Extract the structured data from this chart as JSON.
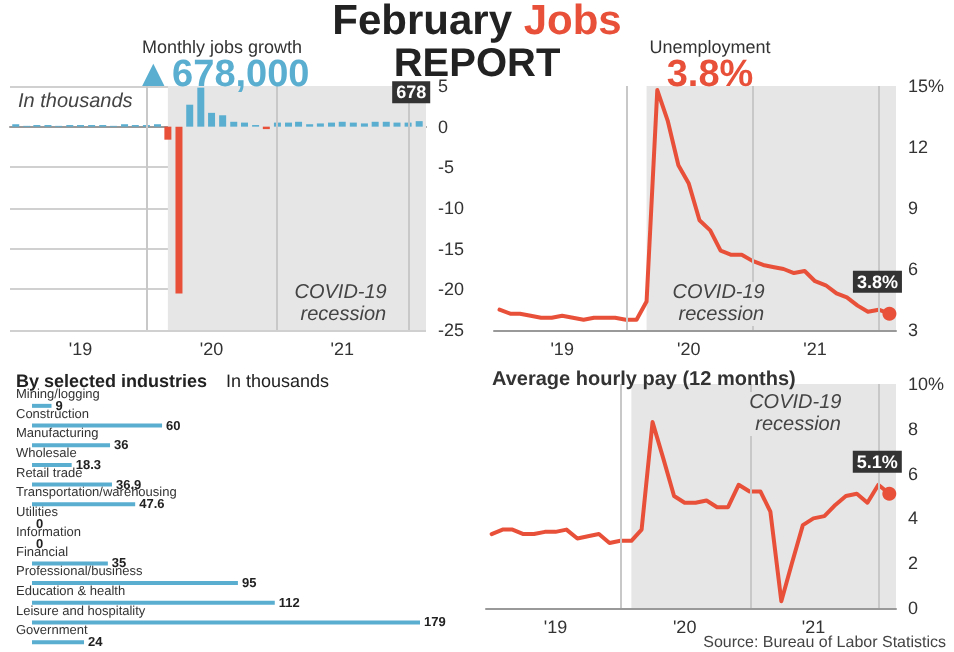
{
  "chart_data": [
    {
      "type": "other",
      "title": "February Jobs",
      "subtitle": "REPORT"
    },
    {
      "type": "bar",
      "title": "Monthly jobs growth",
      "subtitle": "▲678,000",
      "ylabel": "In thousands",
      "x": [
        "2019-01",
        "2019-02",
        "2019-03",
        "2019-04",
        "2019-05",
        "2019-06",
        "2019-07",
        "2019-08",
        "2019-09",
        "2019-10",
        "2019-11",
        "2019-12",
        "2020-01",
        "2020-02",
        "2020-03",
        "2020-04",
        "2020-05",
        "2020-06",
        "2020-07",
        "2020-08",
        "2020-09",
        "2020-10",
        "2020-11",
        "2020-12",
        "2021-01",
        "2021-02",
        "2021-03",
        "2021-04",
        "2021-05",
        "2021-06",
        "2021-07",
        "2021-08",
        "2021-09",
        "2021-10",
        "2021-11",
        "2021-12",
        "2022-01",
        "2022-02"
      ],
      "values": [
        0.3,
        0.1,
        0.2,
        0.2,
        0.1,
        0.2,
        0.2,
        0.2,
        0.2,
        0.1,
        0.3,
        0.2,
        0.2,
        0.3,
        -1.6,
        -20.5,
        2.7,
        4.8,
        1.7,
        1.4,
        0.6,
        0.5,
        0.2,
        -0.3,
        0.5,
        0.5,
        0.6,
        0.3,
        0.4,
        0.5,
        0.6,
        0.5,
        0.4,
        0.6,
        0.6,
        0.5,
        0.5,
        0.678
      ],
      "colors": [
        "#5aaed0",
        "#5aaed0",
        "#5aaed0",
        "#5aaed0",
        "#5aaed0",
        "#5aaed0",
        "#5aaed0",
        "#5aaed0",
        "#5aaed0",
        "#5aaed0",
        "#5aaed0",
        "#5aaed0",
        "#5aaed0",
        "#5aaed0",
        "#e8503a",
        "#e8503a",
        "#5aaed0",
        "#5aaed0",
        "#5aaed0",
        "#5aaed0",
        "#5aaed0",
        "#5aaed0",
        "#5aaed0",
        "#e8503a",
        "#5aaed0",
        "#5aaed0",
        "#5aaed0",
        "#5aaed0",
        "#5aaed0",
        "#5aaed0",
        "#5aaed0",
        "#5aaed0",
        "#5aaed0",
        "#5aaed0",
        "#5aaed0",
        "#5aaed0",
        "#5aaed0",
        "#5aaed0"
      ],
      "annotations": [
        {
          "text": "678",
          "x": "2022-02",
          "y": 0.678
        }
      ],
      "xlim": [
        "2018-12-16",
        "2022-02-20"
      ],
      "xticks": [
        {
          "value": "2019-07-01",
          "label": "'19"
        },
        {
          "value": "2020-01-01",
          "label": null
        },
        {
          "value": "2020-07-01",
          "label": "'20"
        },
        {
          "value": "2021-01-01",
          "label": null
        },
        {
          "value": "2021-07-01",
          "label": "'21"
        },
        {
          "value": "2022-01-01",
          "label": null
        }
      ],
      "ylim": [
        -25,
        5
      ],
      "yticks": [
        -25,
        -20,
        -15,
        -10,
        -5,
        0,
        5
      ],
      "grid": true,
      "bands": [
        {
          "axis": "x",
          "from": "2020-03",
          "to": "2022-02-20",
          "label": "COVID-19 recession",
          "color": "#e6e6e6"
        }
      ]
    },
    {
      "type": "line",
      "title": "Unemployment",
      "subtitle": "3.8%",
      "color": "#e8503a",
      "x": [
        "2019-01",
        "2019-02",
        "2019-03",
        "2019-04",
        "2019-05",
        "2019-06",
        "2019-07",
        "2019-08",
        "2019-09",
        "2019-10",
        "2019-11",
        "2019-12",
        "2020-01",
        "2020-02",
        "2020-03",
        "2020-04",
        "2020-05",
        "2020-06",
        "2020-07",
        "2020-08",
        "2020-09",
        "2020-10",
        "2020-11",
        "2020-12",
        "2021-01",
        "2021-02",
        "2021-03",
        "2021-04",
        "2021-05",
        "2021-06",
        "2021-07",
        "2021-08",
        "2021-09",
        "2021-10",
        "2021-11",
        "2021-12",
        "2022-01",
        "2022-02"
      ],
      "values": [
        4.0,
        3.8,
        3.8,
        3.7,
        3.6,
        3.6,
        3.7,
        3.6,
        3.5,
        3.6,
        3.6,
        3.6,
        3.5,
        3.5,
        4.4,
        14.8,
        13.3,
        11.1,
        10.2,
        8.4,
        7.9,
        6.9,
        6.7,
        6.7,
        6.4,
        6.2,
        6.1,
        6.0,
        5.8,
        5.9,
        5.4,
        5.2,
        4.8,
        4.6,
        4.2,
        3.9,
        4.0,
        3.8
      ],
      "xlim": [
        "2018-12-16",
        "2022-02-20"
      ],
      "xticks": [
        {
          "value": "2019-07-01",
          "label": "'19"
        },
        {
          "value": "2020-01-01",
          "label": null
        },
        {
          "value": "2020-07-01",
          "label": "'20"
        },
        {
          "value": "2021-01-01",
          "label": null
        },
        {
          "value": "2021-07-01",
          "label": "'21"
        },
        {
          "value": "2022-01-01",
          "label": null
        }
      ],
      "ylim": [
        3,
        15
      ],
      "yticks": [
        3,
        6,
        9,
        12,
        {
          "value": 15,
          "label": "15%"
        }
      ],
      "grid": "x",
      "bands": [
        {
          "axis": "x",
          "from": "2020-03",
          "to": "2022-02-20",
          "label": "COVID-19 recession",
          "color": "#e6e6e6"
        }
      ],
      "annotations": [
        {
          "text": "3.8%",
          "x": "2022-02",
          "y": 3.8
        }
      ]
    },
    {
      "type": "bar",
      "orientation": "horizontal",
      "title": "By selected industries",
      "subtitle": "In thousands",
      "color": "#5aaed0",
      "categories": [
        "Mining/logging",
        "Construction",
        "Manufacturing",
        "Wholesale",
        "Retail trade",
        "Transportation/warehousing",
        "Utilities",
        "Information",
        "Financial",
        "Professional/business",
        "Education & health",
        "Leisure and hospitality",
        "Government"
      ],
      "values": [
        9,
        60,
        36,
        18.3,
        36.9,
        47.6,
        0,
        0,
        35,
        95,
        112,
        179,
        24
      ],
      "data_labels": true,
      "tick_labels": "y"
    },
    {
      "type": "line",
      "title": "Average hourly pay (12 months)",
      "color": "#e8503a",
      "x": [
        "2019-01",
        "2019-02",
        "2019-03",
        "2019-04",
        "2019-05",
        "2019-06",
        "2019-07",
        "2019-08",
        "2019-09",
        "2019-10",
        "2019-11",
        "2019-12",
        "2020-01",
        "2020-02",
        "2020-03",
        "2020-04",
        "2020-05",
        "2020-06",
        "2020-07",
        "2020-08",
        "2020-09",
        "2020-10",
        "2020-11",
        "2020-12",
        "2021-01",
        "2021-02",
        "2021-03",
        "2021-04",
        "2021-05",
        "2021-06",
        "2021-07",
        "2021-08",
        "2021-09",
        "2021-10",
        "2021-11",
        "2021-12",
        "2022-01",
        "2022-02"
      ],
      "values": [
        3.3,
        3.5,
        3.5,
        3.3,
        3.3,
        3.4,
        3.4,
        3.5,
        3.1,
        3.2,
        3.3,
        2.9,
        3.0,
        3.0,
        3.5,
        8.3,
        6.7,
        5.0,
        4.7,
        4.7,
        4.8,
        4.5,
        4.5,
        5.5,
        5.2,
        5.2,
        4.3,
        0.3,
        2.0,
        3.7,
        4.0,
        4.1,
        4.6,
        5.0,
        5.1,
        4.7,
        5.5,
        5.1
      ],
      "xlim": [
        "2018-12-16",
        "2022-02-20"
      ],
      "xticks": [
        {
          "value": "2019-07-01",
          "label": "'19"
        },
        {
          "value": "2020-01-01",
          "label": null
        },
        {
          "value": "2020-07-01",
          "label": "'20"
        },
        {
          "value": "2021-01-01",
          "label": null
        },
        {
          "value": "2021-07-01",
          "label": "'21"
        },
        {
          "value": "2022-01-01",
          "label": null
        }
      ],
      "ylim": [
        0,
        10
      ],
      "yticks": [
        0,
        2,
        4,
        6,
        8,
        {
          "value": 10,
          "label": "10%"
        }
      ],
      "grid": "x",
      "bands": [
        {
          "axis": "x",
          "from": "2020-02",
          "to": "2022-02-20",
          "label": "COVID-19 recession",
          "color": "#e6e6e6"
        }
      ],
      "annotations": [
        {
          "text": "5.1%",
          "x": "2022-02",
          "y": 5.1
        },
        "Source: Bureau of Labor Statistics"
      ]
    }
  ]
}
